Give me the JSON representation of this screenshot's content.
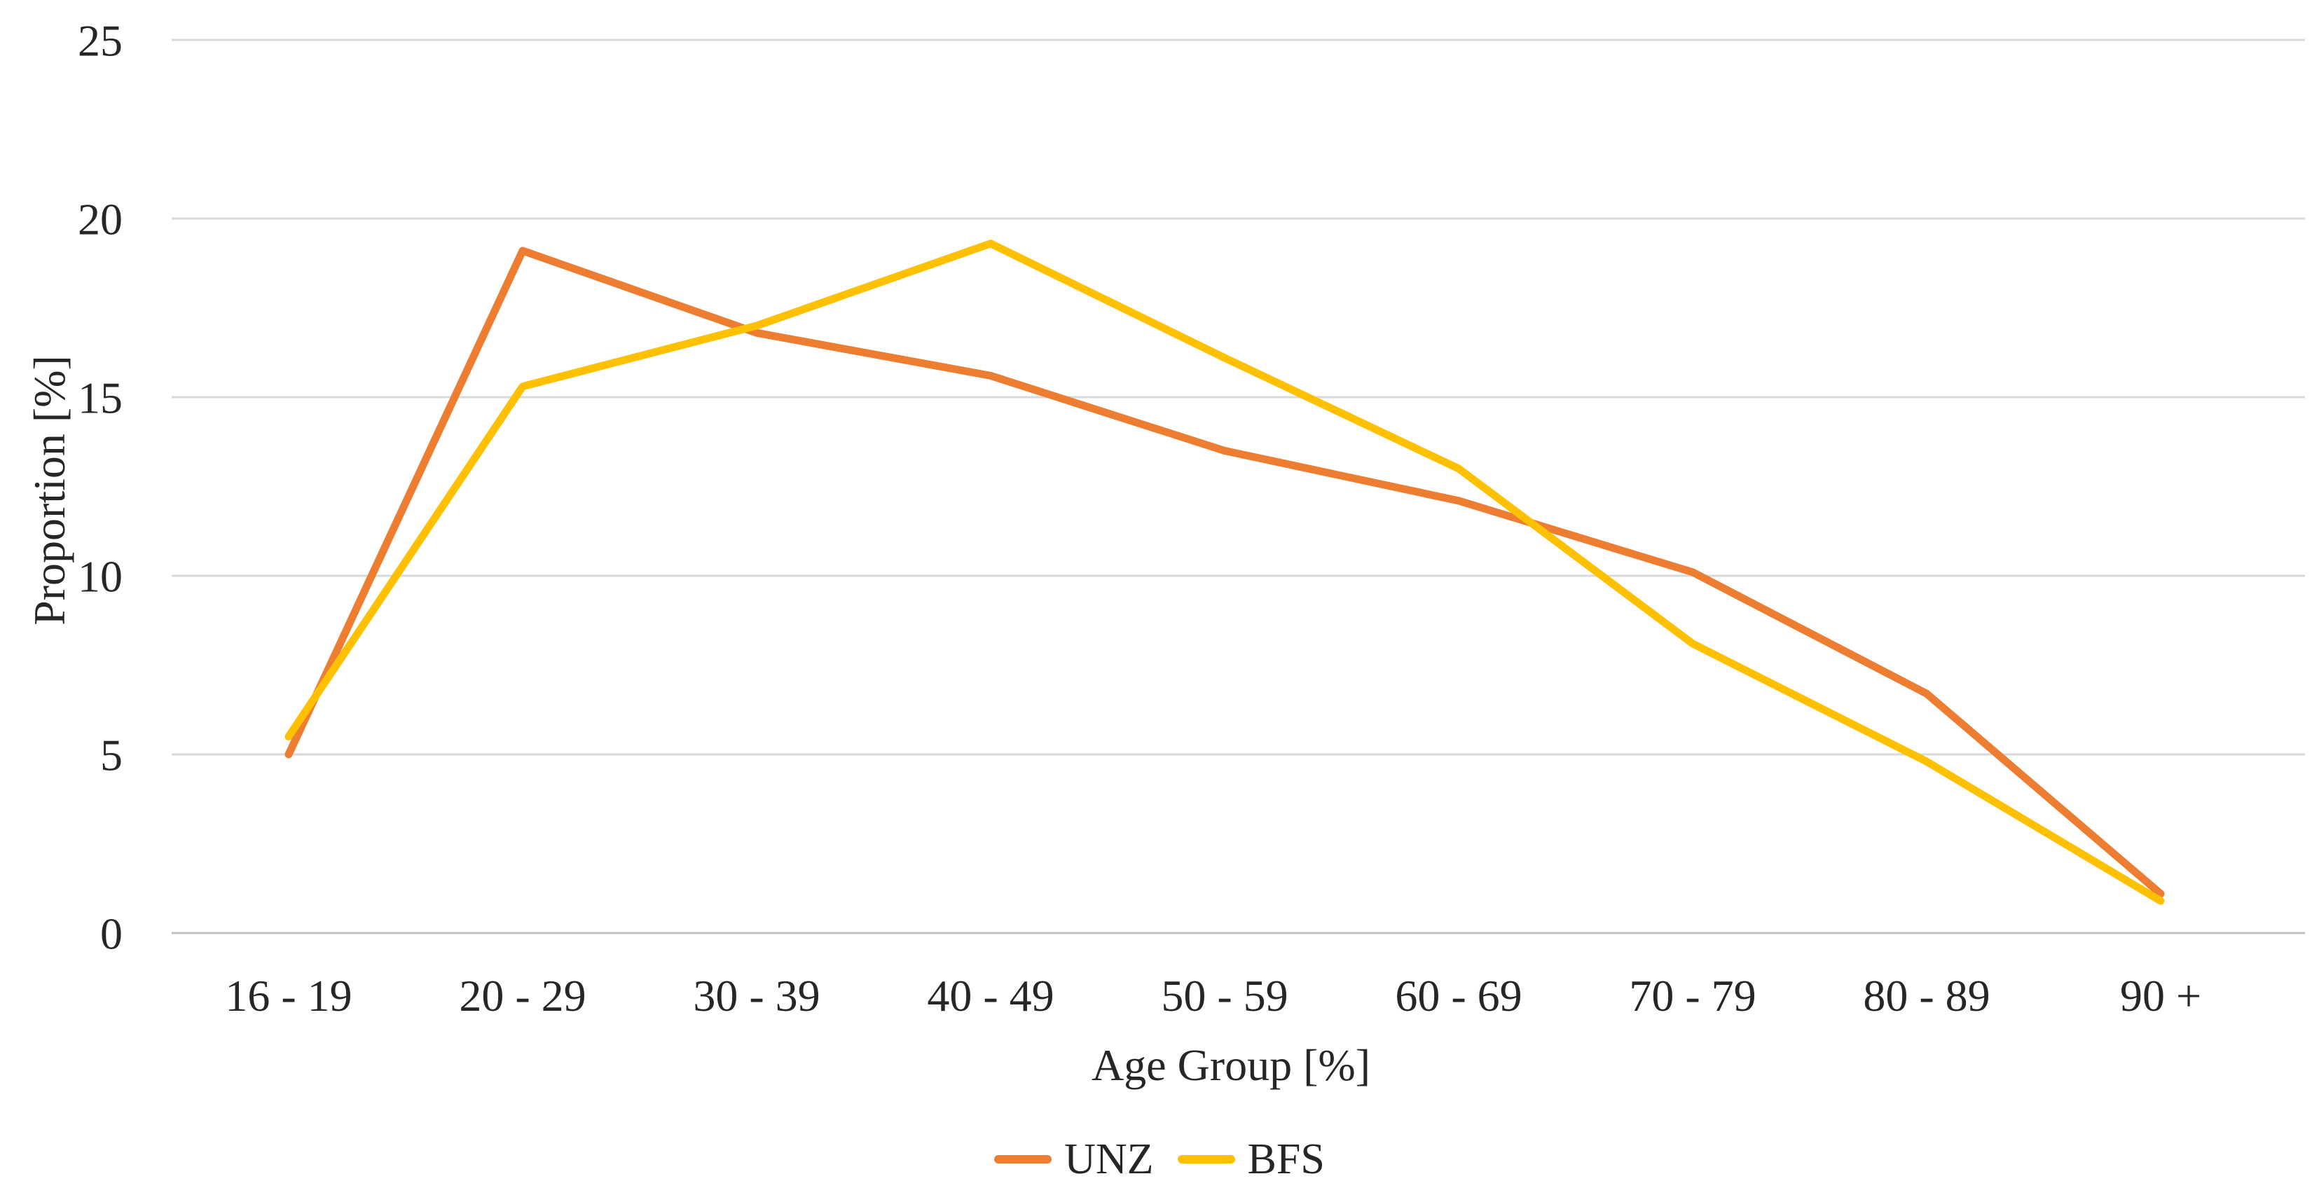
{
  "chart_data": {
    "type": "line",
    "title": "",
    "categories": [
      "16 - 19",
      "20 - 29",
      "30 - 39",
      "40 - 49",
      "50 - 59",
      "60 - 69",
      "70 - 79",
      "80 - 89",
      "90 +"
    ],
    "series": [
      {
        "name": "UNZ",
        "color": "#ED7D31",
        "values": [
          5.0,
          19.1,
          16.8,
          15.6,
          13.5,
          12.1,
          10.1,
          6.7,
          1.1
        ]
      },
      {
        "name": "BFS",
        "color": "#FFC000",
        "values": [
          5.5,
          15.3,
          17.0,
          19.3,
          16.1,
          13.0,
          8.1,
          4.8,
          0.9
        ]
      }
    ],
    "xlabel": "Age Group [%]",
    "ylabel": "Proportion [%]",
    "ylim": [
      0,
      25
    ],
    "yticks": [
      0,
      5,
      10,
      15,
      20,
      25
    ],
    "grid": "horizontal",
    "legend_position": "bottom"
  },
  "colors": {
    "background": "#FFFFFF",
    "gridline": "#D9D9D9",
    "axis_line": "#BFBFBF",
    "text": "#262626"
  }
}
